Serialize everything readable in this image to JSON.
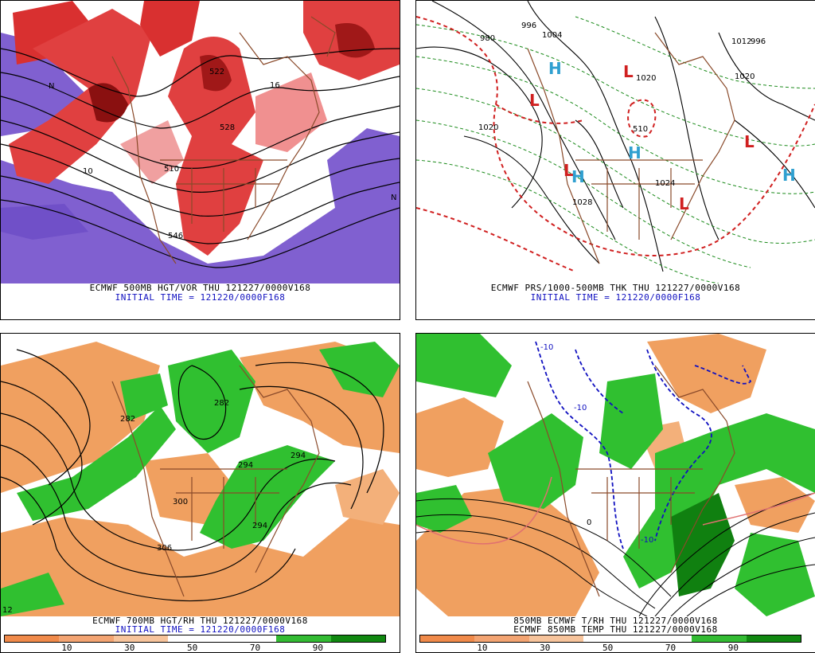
{
  "panels": [
    {
      "id": "p1",
      "caption_line1": "ECMWF 500MB HGT/VOR THU 121227/0000V168",
      "caption_line2": "INITIAL TIME = 121220/0000F168",
      "map_labels": [
        "522",
        "528",
        "510",
        "546",
        "10",
        "16",
        "N",
        "N"
      ]
    },
    {
      "id": "p2",
      "caption_line1": "ECMWF PRS/1000-500MB THK THU 121227/0000V168",
      "caption_line2": "INITIAL TIME = 121220/0000F168",
      "map_labels": [
        "1020",
        "1028",
        "996",
        "980",
        "1004",
        "1012",
        "996",
        "1020",
        "510",
        "1024",
        "1020"
      ],
      "lows": [
        "L",
        "L",
        "L",
        "L",
        "L"
      ],
      "highs": [
        "H",
        "H",
        "H",
        "H"
      ]
    },
    {
      "id": "p3",
      "caption_line1": "ECMWF 700MB HGT/RH THU 121227/0000V168",
      "caption_line2": "INITIAL TIME = 121220/0000F168",
      "map_labels": [
        "282",
        "282",
        "294",
        "294",
        "300",
        "306",
        "294",
        "12"
      ],
      "colorbar_ticks": [
        "10",
        "30",
        "50",
        "70",
        "90"
      ]
    },
    {
      "id": "p4",
      "caption_line1": "850MB ECMWF T/RH THU 121227/0000V168",
      "caption_line2": "ECMWF 850MB TEMP THU 121227/0000V168",
      "map_labels": [
        "-10",
        "-10",
        "0",
        "-10"
      ],
      "colorbar_ticks": [
        "10",
        "30",
        "50",
        "70",
        "90"
      ]
    }
  ],
  "colors": {
    "vort_red": "#d93030",
    "vort_pink": "#f0a0a0",
    "vort_purple": "#8060d0",
    "rh_orange": "#f0a060",
    "rh_green": "#30c030",
    "rh_darkgreen": "#108010",
    "border_brown": "#8a4a2a",
    "pressure_red": "#d02020",
    "pressure_green": "#1a8a1a",
    "high_cyan": "#30a0d0"
  },
  "colorbar": {
    "stops": [
      "#f08a4a",
      "#f3a472",
      "#f7c49c",
      "#ffffff",
      "#ffffff",
      "#33bb33",
      "#108810"
    ]
  }
}
